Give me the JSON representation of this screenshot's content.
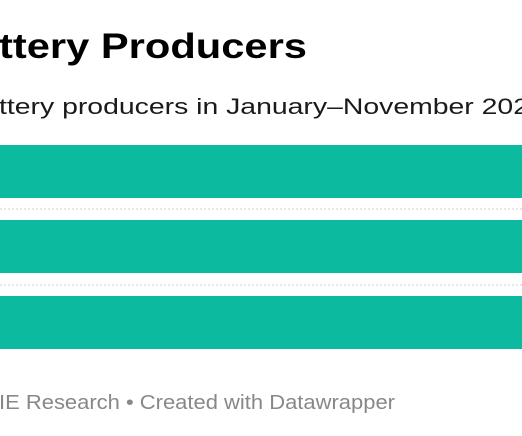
{
  "header": {
    "title": "ttery Producers",
    "subtitle": "ttery producers in January–November 202"
  },
  "footer": {
    "source": "IE Research • Created with Datawrapper"
  }
}
